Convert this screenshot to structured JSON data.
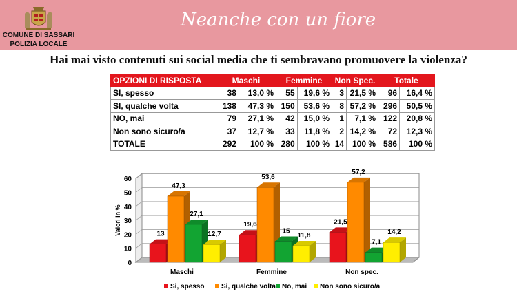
{
  "header": {
    "org_line1": "COMUNE DI SASSARI",
    "org_line2": "POLIZIA LOCALE",
    "slogan": "Neanche con un fiore",
    "colors": {
      "band": "#e8989f"
    }
  },
  "question": "Hai mai visto contenuti sui social media che ti sembravano promuovere la violenza?",
  "table": {
    "headers": [
      "OPZIONI DI RISPOSTA",
      "Maschi",
      "Femmine",
      "Non Spec.",
      "Totale"
    ],
    "rows": [
      [
        "SI, spesso",
        "38",
        "13,0 %",
        "55",
        "19,6 %",
        "3",
        "21,5 %",
        "96",
        "16,4 %"
      ],
      [
        "SI, qualche volta",
        "138",
        "47,3 %",
        "150",
        "53,6 %",
        "8",
        "57,2 %",
        "296",
        "50,5 %"
      ],
      [
        "NO, mai",
        "79",
        "27,1 %",
        "42",
        "15,0 %",
        "1",
        "7,1 %",
        "122",
        "20,8 %"
      ],
      [
        "Non sono sicuro/a",
        "37",
        "12,7 %",
        "33",
        "11,8 %",
        "2",
        "14,2 %",
        "72",
        "12,3 %"
      ],
      [
        "TOTALE",
        "292",
        "100 %",
        "280",
        "100 %",
        "14",
        "100 %",
        "586",
        "100 %"
      ]
    ]
  },
  "chart_data": {
    "type": "bar",
    "categories": [
      "Maschi",
      "Femmine",
      "Non spec."
    ],
    "ylabel": "Valori in %",
    "ylim": [
      0,
      60
    ],
    "yticks": [
      "0",
      "10",
      "20",
      "30",
      "40",
      "50",
      "60"
    ],
    "legend": "bottom",
    "series": [
      {
        "name": "Si, spesso",
        "values": [
          13,
          19.6,
          21.5
        ],
        "labels": [
          "13",
          "19,6",
          "21,5"
        ],
        "color": "#e8141c"
      },
      {
        "name": "Si, qualche volta",
        "values": [
          47.3,
          53.6,
          57.2
        ],
        "labels": [
          "47,3",
          "53,6",
          "57,2"
        ],
        "color": "#ff8a00"
      },
      {
        "name": "No, mai",
        "values": [
          27.1,
          15,
          7.1
        ],
        "labels": [
          "27,1",
          "15",
          "7,1"
        ],
        "color": "#12a432"
      },
      {
        "name": "Non sono sicuro/a",
        "values": [
          12.7,
          11.8,
          14.2
        ],
        "labels": [
          "12,7",
          "11,8",
          "14,2"
        ],
        "color": "#ffee00"
      }
    ]
  }
}
